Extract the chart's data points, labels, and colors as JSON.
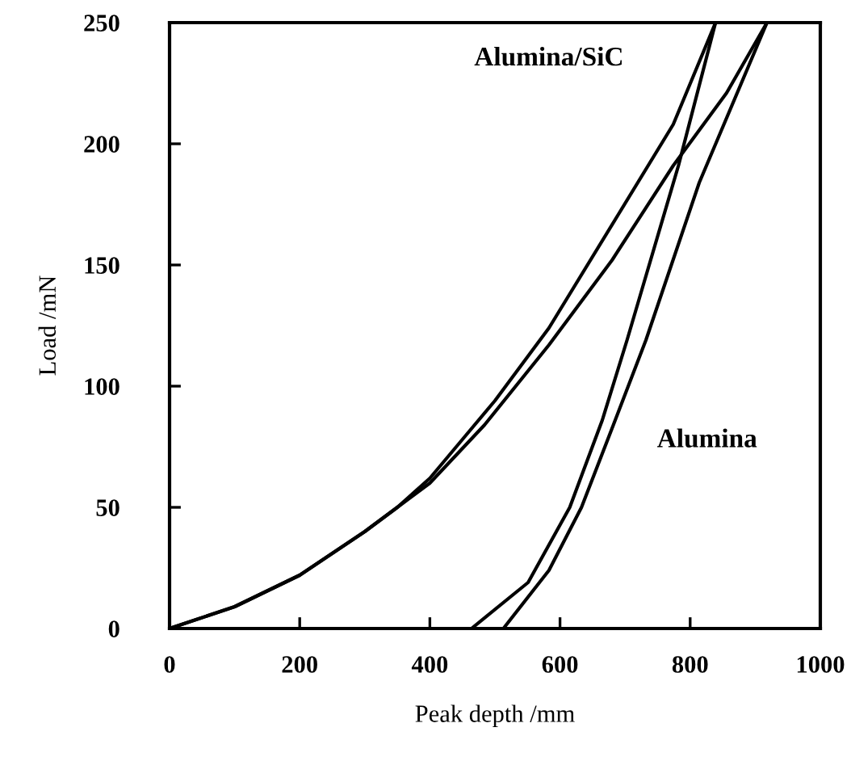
{
  "chart_data": {
    "type": "line",
    "xlabel": "Peak depth /mm",
    "ylabel": "Load /mN",
    "xlim": [
      0,
      1000
    ],
    "ylim": [
      0,
      250
    ],
    "xticks": [
      0,
      200,
      400,
      600,
      800,
      1000
    ],
    "yticks": [
      0,
      50,
      100,
      150,
      200,
      250
    ],
    "grid": false,
    "legend": false,
    "marker": "none",
    "line_style": "solid",
    "series": [
      {
        "color": "#000000",
        "x": [
          0,
          100,
          200,
          300,
          350,
          400,
          450,
          500,
          583,
          690,
          774,
          839
        ],
        "values": [
          0,
          9,
          22,
          40,
          50,
          62,
          78,
          94,
          124,
          171,
          208,
          250
        ]
      },
      {
        "color": "#000000",
        "x": [
          0,
          100,
          200,
          300,
          350,
          400,
          484,
          583,
          680,
          774,
          856,
          918
        ],
        "values": [
          0,
          9,
          22,
          40,
          50,
          60,
          84,
          117,
          152,
          191,
          221,
          250
        ]
      },
      {
        "color": "#000000",
        "x": [
          464,
          551,
          615,
          665,
          703,
          782,
          839
        ],
        "values": [
          0,
          19,
          50,
          86,
          119,
          191,
          250
        ]
      },
      {
        "color": "#000000",
        "x": [
          513,
          583,
          633,
          682,
          732,
          814,
          918
        ],
        "values": [
          0,
          24,
          50,
          84,
          119,
          184,
          250
        ]
      }
    ],
    "annotations": [
      "Alumina/SiC",
      "Alumina"
    ]
  }
}
